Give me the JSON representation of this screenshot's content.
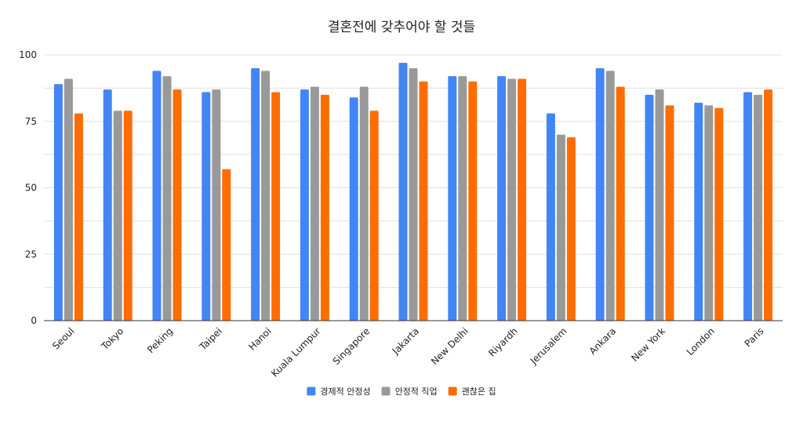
{
  "chart_data": {
    "type": "bar",
    "title": "결혼전에 갖추어야 할 것들",
    "xlabel": "",
    "ylabel": "",
    "ylim": [
      0,
      100
    ],
    "yticks": [
      0,
      25,
      50,
      75,
      100
    ],
    "grid": true,
    "legend_position": "bottom",
    "categories": [
      "Seoul",
      "Tokyo",
      "Peking",
      "Taipei",
      "Hanoi",
      "Kuala Lumpur",
      "Singapore",
      "Jakarta",
      "New Delhi",
      "Riyardh",
      "Jerusalem",
      "Ankara",
      "New York",
      "London",
      "Paris"
    ],
    "series": [
      {
        "name": "경제적 안정성",
        "color": "#4285f4",
        "values": [
          89,
          87,
          94,
          86,
          95,
          87,
          84,
          97,
          92,
          92,
          78,
          95,
          85,
          82,
          86
        ]
      },
      {
        "name": "안정적 직업",
        "color": "#999999",
        "values": [
          91,
          79,
          92,
          87,
          94,
          88,
          88,
          95,
          92,
          91,
          70,
          94,
          87,
          81,
          85
        ]
      },
      {
        "name": "괜찮은 집",
        "color": "#ff6d01",
        "values": [
          78,
          79,
          87,
          57,
          86,
          85,
          79,
          90,
          90,
          91,
          69,
          88,
          81,
          80,
          87
        ]
      }
    ]
  }
}
